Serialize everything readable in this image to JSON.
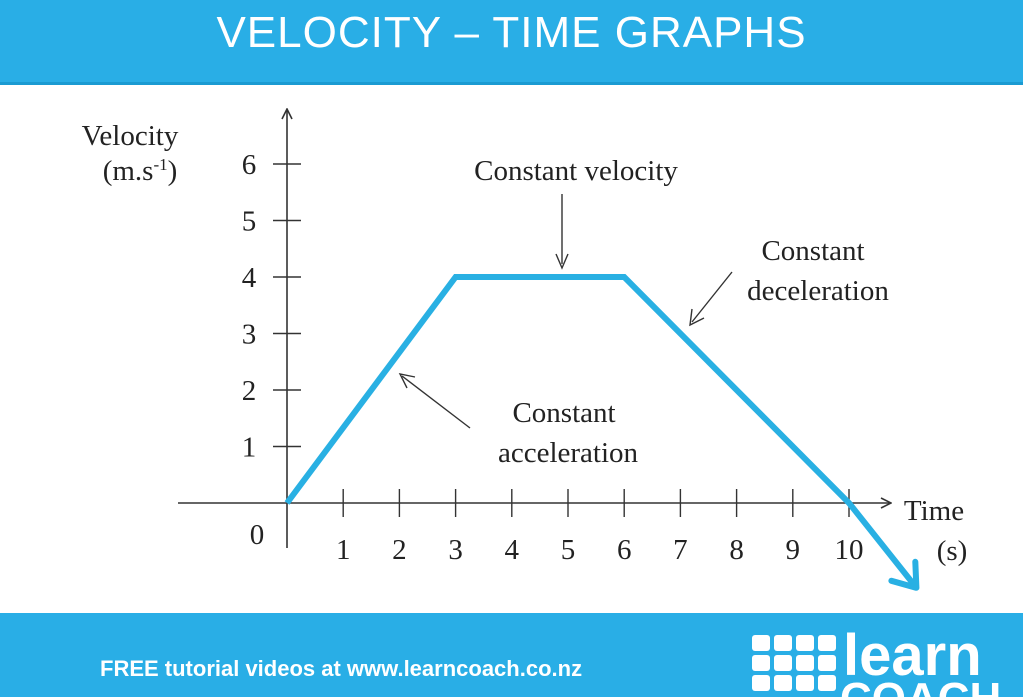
{
  "header": {
    "title": "VELOCITY – TIME GRAPHS"
  },
  "footer": {
    "text": "FREE tutorial videos at www.learncoach.co.nz",
    "logo_line1": "learn",
    "logo_line2": "COACH"
  },
  "colors": {
    "banner": "#29aee6",
    "line": "#29b0e3",
    "axis": "#333333"
  },
  "chart_data": {
    "type": "line",
    "title": "",
    "xlabel": [
      "Time",
      "(s)"
    ],
    "ylabel": [
      "Velocity",
      "(m.s",
      "-1",
      ")"
    ],
    "origin_label": "0",
    "x_ticks": [
      "1",
      "2",
      "3",
      "4",
      "5",
      "6",
      "7",
      "8",
      "9",
      "10"
    ],
    "y_ticks": [
      "1",
      "2",
      "3",
      "4",
      "5",
      "6"
    ],
    "xlim": [
      0,
      10.5
    ],
    "ylim": [
      0,
      6
    ],
    "grid": false,
    "series": [
      {
        "x": [
          0,
          3,
          6,
          10,
          11.2
        ],
        "y": [
          0,
          4,
          4,
          0,
          -1.5
        ],
        "arrow_end": true
      }
    ],
    "annotations": [
      {
        "lines": [
          "Constant velocity"
        ],
        "points_to": [
          5,
          4
        ]
      },
      {
        "lines": [
          "Constant",
          "deceleration"
        ],
        "points_to": [
          7.3,
          3.1
        ]
      },
      {
        "lines": [
          "Constant",
          "acceleration"
        ],
        "points_to": [
          2.0,
          2.3
        ]
      }
    ]
  }
}
